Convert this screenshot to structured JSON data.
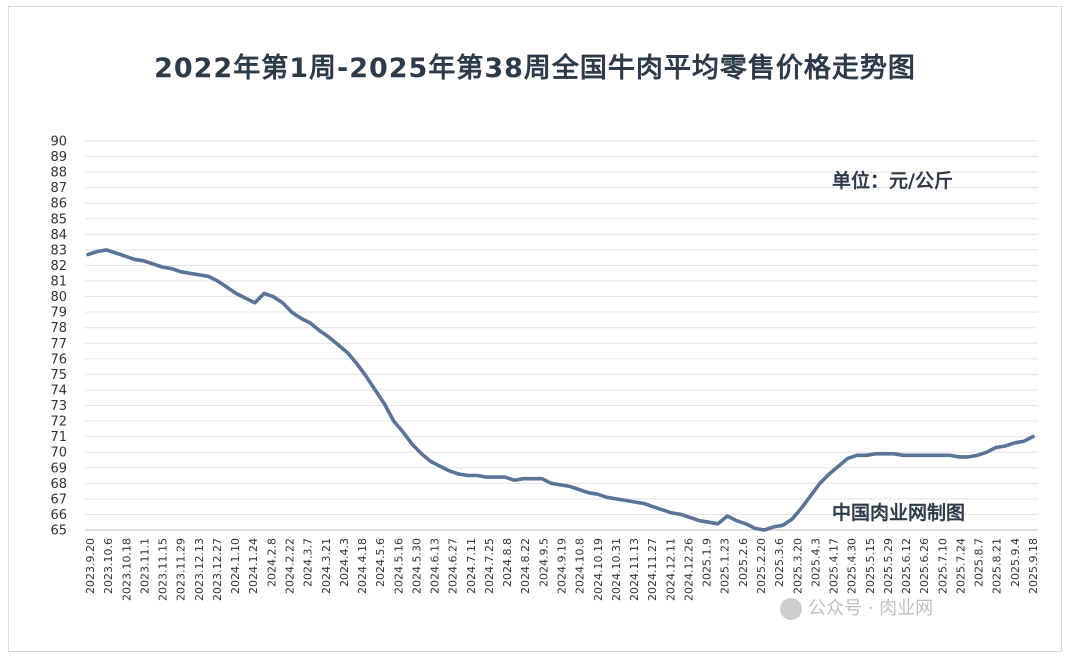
{
  "chart_data": {
    "type": "line",
    "title": "2022年第1周-2025年第38周全国牛肉平均零售价格走势图",
    "unit_label": "单位：元/公斤",
    "source_label": "中国肉业网制图",
    "watermark": "公众号 · 肉业网",
    "ylim": [
      65,
      90
    ],
    "y_ticks": [
      65,
      66,
      67,
      68,
      69,
      70,
      71,
      72,
      73,
      74,
      75,
      76,
      77,
      78,
      79,
      80,
      81,
      82,
      83,
      84,
      85,
      86,
      87,
      88,
      89,
      90
    ],
    "x_tick_labels": [
      "2023.9.20",
      "2023.10.6",
      "2023.10.18",
      "2023.11.1",
      "2023.11.15",
      "2023.11.29",
      "2023.12.13",
      "2023.12.27",
      "2024.1.10",
      "2024.1.24",
      "2024.2.8",
      "2024.2.22",
      "2024.3.7",
      "2024.3.21",
      "2024.4.3",
      "2024.4.18",
      "2024.5.6",
      "2024.5.16",
      "2024.5.30",
      "2024.6.13",
      "2024.6.27",
      "2024.7.11",
      "2024.7.25",
      "2024.8.8",
      "2024.8.22",
      "2024.9.5",
      "2024.9.19",
      "2024.10.8",
      "2024.10.19",
      "2024.10.31",
      "2024.11.13",
      "2024.11.27",
      "2024.12.11",
      "2024.12.26",
      "2025.1.9",
      "2025.1.23",
      "2025.2.6",
      "2025.2.20",
      "2025.3.6",
      "2025.3.20",
      "2025.4.3",
      "2025.4.17",
      "2025.4.30",
      "2025.5.15",
      "2025.5.29",
      "2025.6.12",
      "2025.6.26",
      "2025.7.10",
      "2025.7.24",
      "2025.8.7",
      "2025.8.21",
      "2025.9.4",
      "2025.9.18"
    ],
    "series": [
      {
        "color": "#5b7396",
        "values": [
          82.7,
          82.9,
          83.0,
          82.8,
          82.6,
          82.4,
          82.3,
          82.1,
          81.9,
          81.8,
          81.6,
          81.5,
          81.4,
          81.3,
          81.0,
          80.6,
          80.2,
          79.9,
          79.6,
          80.2,
          80.0,
          79.6,
          79.0,
          78.6,
          78.3,
          77.8,
          77.4,
          76.9,
          76.4,
          75.7,
          74.9,
          74.0,
          73.1,
          72.0,
          71.3,
          70.5,
          69.9,
          69.4,
          69.1,
          68.8,
          68.6,
          68.5,
          68.5,
          68.4,
          68.4,
          68.4,
          68.2,
          68.3,
          68.3,
          68.3,
          68.0,
          67.9,
          67.8,
          67.6,
          67.4,
          67.3,
          67.1,
          67.0,
          66.9,
          66.8,
          66.7,
          66.5,
          66.3,
          66.1,
          66.0,
          65.8,
          65.6,
          65.5,
          65.4,
          65.9,
          65.6,
          65.4,
          65.1,
          65.0,
          65.2,
          65.3,
          65.7,
          66.4,
          67.2,
          68.0,
          68.6,
          69.1,
          69.6,
          69.8,
          69.8,
          69.9,
          69.9,
          69.9,
          69.8,
          69.8,
          69.8,
          69.8,
          69.8,
          69.8,
          69.7,
          69.7,
          69.8,
          70.0,
          70.3,
          70.4,
          70.6,
          70.7,
          71.0
        ]
      }
    ]
  }
}
